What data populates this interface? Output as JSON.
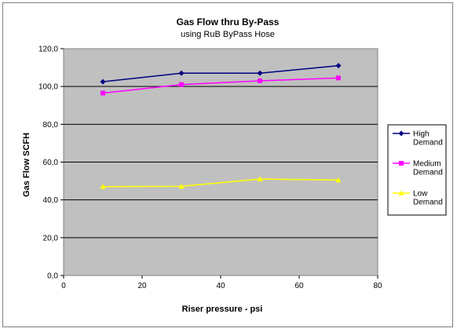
{
  "chart_data": {
    "type": "line",
    "title": "Gas Flow thru By-Pass",
    "subtitle": "using RuB ByPass Hose",
    "xlabel": "Riser pressure - psi",
    "ylabel": "Gas Flow SCFH",
    "xlim": [
      0,
      80
    ],
    "ylim": [
      0,
      120
    ],
    "x_ticks": [
      "0",
      "20",
      "40",
      "60",
      "80"
    ],
    "y_ticks": [
      "0,0",
      "20,0",
      "40,0",
      "60,0",
      "80,0",
      "100,0",
      "120,0"
    ],
    "grid": "horizontal",
    "legend_position": "right",
    "plot_background": "#c0c0c0",
    "x": [
      10,
      30,
      50,
      70
    ],
    "series": [
      {
        "name": "High Demand",
        "legend_lines": [
          "High",
          "Demand"
        ],
        "marker": "diamond",
        "color": "#000080",
        "values": [
          102.5,
          107.0,
          107.0,
          111.0
        ]
      },
      {
        "name": "Medium Demand",
        "legend_lines": [
          "Medium",
          "Demand"
        ],
        "marker": "square",
        "color": "#ff00ff",
        "values": [
          96.5,
          101.0,
          103.0,
          104.5
        ]
      },
      {
        "name": "Low Demand",
        "legend_lines": [
          "Low",
          "Demand"
        ],
        "marker": "triangle",
        "color": "#ffff00",
        "values": [
          47.0,
          47.2,
          51.0,
          50.5
        ]
      }
    ]
  }
}
